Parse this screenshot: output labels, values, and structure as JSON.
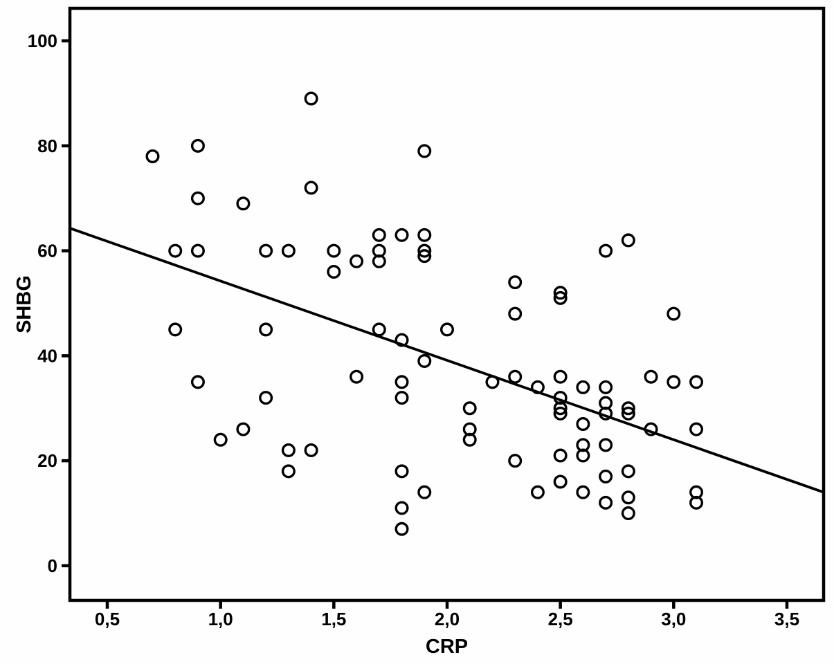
{
  "chart_data": {
    "type": "scatter",
    "title": "",
    "xlabel": "CRP",
    "ylabel": "SHBG",
    "xlim": [
      0.335,
      3.662
    ],
    "ylim": [
      -6.6,
      106.2
    ],
    "grid": false,
    "legend": null,
    "marker": {
      "shape": "open-circle",
      "color": "#000000"
    },
    "colors": {
      "foreground": "#000000",
      "background": "#ffffff"
    },
    "x_ticks": [
      {
        "value": 0.5,
        "label": "0,5"
      },
      {
        "value": 1.0,
        "label": "1,0"
      },
      {
        "value": 1.5,
        "label": "1,5"
      },
      {
        "value": 2.0,
        "label": "2,0"
      },
      {
        "value": 2.5,
        "label": "2,5"
      },
      {
        "value": 3.0,
        "label": "3,0"
      },
      {
        "value": 3.5,
        "label": "3,5"
      }
    ],
    "y_ticks": [
      {
        "value": 0,
        "label": "0"
      },
      {
        "value": 20,
        "label": "20"
      },
      {
        "value": 40,
        "label": "40"
      },
      {
        "value": 60,
        "label": "60"
      },
      {
        "value": 80,
        "label": "80"
      },
      {
        "value": 100,
        "label": "100"
      }
    ],
    "regression_line": {
      "x1": 0.335,
      "y1": 64.3,
      "x2": 3.662,
      "y2": 14.0
    },
    "points": [
      [
        0.7,
        78
      ],
      [
        0.8,
        60
      ],
      [
        0.8,
        45
      ],
      [
        0.9,
        80
      ],
      [
        0.9,
        70
      ],
      [
        0.9,
        60
      ],
      [
        0.9,
        35
      ],
      [
        1.0,
        24
      ],
      [
        1.1,
        69
      ],
      [
        1.1,
        26
      ],
      [
        1.2,
        60
      ],
      [
        1.2,
        45
      ],
      [
        1.2,
        32
      ],
      [
        1.3,
        60
      ],
      [
        1.3,
        22
      ],
      [
        1.3,
        18
      ],
      [
        1.4,
        89
      ],
      [
        1.4,
        72
      ],
      [
        1.4,
        22
      ],
      [
        1.5,
        60
      ],
      [
        1.5,
        56
      ],
      [
        1.6,
        58
      ],
      [
        1.6,
        36
      ],
      [
        1.7,
        63
      ],
      [
        1.7,
        60
      ],
      [
        1.7,
        58
      ],
      [
        1.7,
        45
      ],
      [
        1.8,
        63
      ],
      [
        1.8,
        43
      ],
      [
        1.8,
        35
      ],
      [
        1.8,
        32
      ],
      [
        1.8,
        18
      ],
      [
        1.8,
        11
      ],
      [
        1.8,
        7
      ],
      [
        1.9,
        79
      ],
      [
        1.9,
        63
      ],
      [
        1.9,
        60
      ],
      [
        1.9,
        59
      ],
      [
        1.9,
        39
      ],
      [
        1.9,
        14
      ],
      [
        2.0,
        45
      ],
      [
        2.1,
        30
      ],
      [
        2.1,
        26
      ],
      [
        2.1,
        24
      ],
      [
        2.2,
        35
      ],
      [
        2.3,
        54
      ],
      [
        2.3,
        48
      ],
      [
        2.3,
        36
      ],
      [
        2.3,
        20
      ],
      [
        2.4,
        34
      ],
      [
        2.4,
        14
      ],
      [
        2.5,
        52
      ],
      [
        2.5,
        51
      ],
      [
        2.5,
        36
      ],
      [
        2.5,
        32
      ],
      [
        2.5,
        30
      ],
      [
        2.5,
        29
      ],
      [
        2.5,
        21
      ],
      [
        2.5,
        16
      ],
      [
        2.6,
        34
      ],
      [
        2.6,
        27
      ],
      [
        2.6,
        23
      ],
      [
        2.6,
        21
      ],
      [
        2.6,
        14
      ],
      [
        2.7,
        60
      ],
      [
        2.7,
        34
      ],
      [
        2.7,
        31
      ],
      [
        2.7,
        29
      ],
      [
        2.7,
        23
      ],
      [
        2.7,
        17
      ],
      [
        2.7,
        12
      ],
      [
        2.8,
        62
      ],
      [
        2.8,
        30
      ],
      [
        2.8,
        29
      ],
      [
        2.8,
        18
      ],
      [
        2.8,
        13
      ],
      [
        2.8,
        10
      ],
      [
        2.9,
        36
      ],
      [
        2.9,
        26
      ],
      [
        3.0,
        48
      ],
      [
        3.0,
        35
      ],
      [
        3.1,
        35
      ],
      [
        3.1,
        26
      ],
      [
        3.1,
        14
      ],
      [
        3.1,
        12
      ]
    ]
  }
}
